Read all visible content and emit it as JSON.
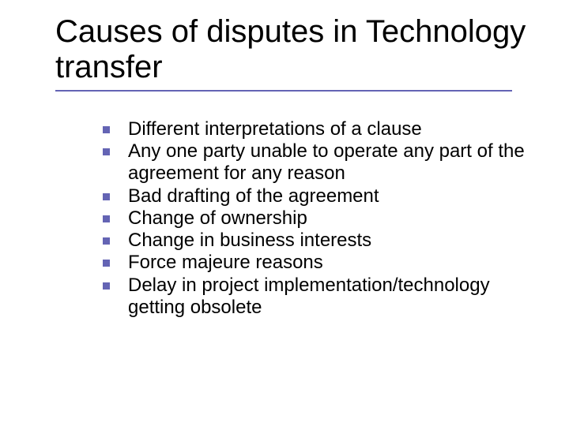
{
  "slide": {
    "title": "Causes of disputes in Technology transfer",
    "title_fontsize": 40,
    "title_color": "#000000",
    "underline_color": "#6464b4",
    "underline_width": 578,
    "background_color": "#ffffff",
    "bullet_marker_color": "#6464b4",
    "bullet_marker_size": 9,
    "bullet_fontsize": 24,
    "bullet_color": "#000000",
    "bullets": [
      "Different interpretations of a clause",
      "Any one party unable to operate any part of the agreement for any reason",
      "Bad drafting of the agreement",
      "Change of ownership",
      "Change in business interests",
      "Force majeure reasons",
      "Delay in project implementation/technology getting obsolete"
    ]
  }
}
